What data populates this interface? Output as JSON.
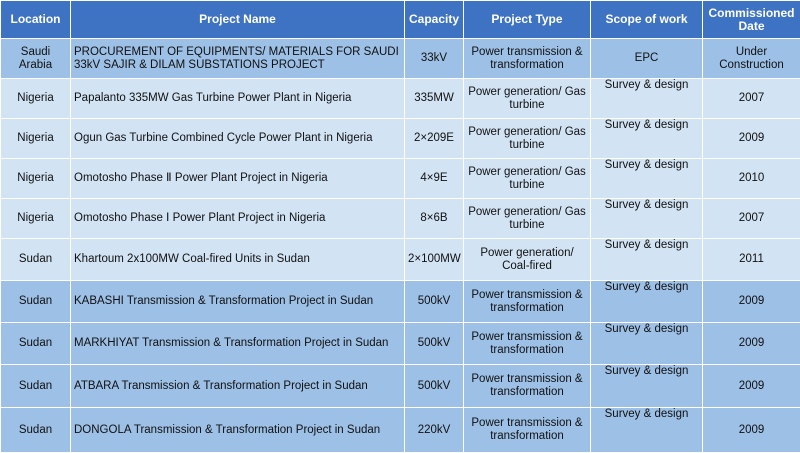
{
  "table": {
    "headers": {
      "location": "Location",
      "project_name": "Project Name",
      "capacity": "Capacity",
      "project_type": "Project Type",
      "scope": "Scope of work",
      "commissioned": "Commissioned Date"
    },
    "rows": [
      {
        "location": "Saudi Arabia",
        "project_name": "PROCUREMENT OF EQUIPMENTS/ MATERIALS FOR SAUDI 33kV SAJIR & DILAM SUBSTATIONS PROJECT",
        "capacity": "33kV",
        "project_type": "Power transmission & transformation",
        "scope": "EPC",
        "commissioned": "Under Construction"
      },
      {
        "location": "Nigeria",
        "project_name": "Papalanto 335MW Gas Turbine Power Plant in Nigeria",
        "capacity": "335MW",
        "project_type": "Power generation/ Gas turbine",
        "scope": "Survey & design",
        "commissioned": "2007"
      },
      {
        "location": "Nigeria",
        "project_name": "Ogun Gas Turbine Combined Cycle Power Plant in Nigeria",
        "capacity": "2×209E",
        "project_type": "Power generation/ Gas turbine",
        "scope": "Survey & design",
        "commissioned": "2009"
      },
      {
        "location": "Nigeria",
        "project_name": "Omotosho Phase Ⅱ Power Plant Project in Nigeria",
        "capacity": "4×9E",
        "project_type": "Power generation/ Gas turbine",
        "scope": "Survey & design",
        "commissioned": "2010"
      },
      {
        "location": "Nigeria",
        "project_name": "Omotosho Phase Ⅰ Power Plant Project in Nigeria",
        "capacity": "8×6B",
        "project_type": "Power generation/ Gas turbine",
        "scope": "Survey & design",
        "commissioned": "2007"
      },
      {
        "location": "Sudan",
        "project_name": "Khartoum 2x100MW Coal-fired Units in Sudan",
        "capacity": "2×100MW",
        "project_type": "Power generation/ Coal-fired",
        "scope": "Survey & design",
        "commissioned": "2011"
      },
      {
        "location": "Sudan",
        "project_name": "KABASHI Transmission & Transformation Project in Sudan",
        "capacity": "500kV",
        "project_type": "Power transmission & transformation",
        "scope": "Survey & design",
        "commissioned": "2009"
      },
      {
        "location": "Sudan",
        "project_name": "MARKHIYAT Transmission & Transformation Project in Sudan",
        "capacity": "500kV",
        "project_type": "Power transmission & transformation",
        "scope": "Survey & design",
        "commissioned": "2009"
      },
      {
        "location": "Sudan",
        "project_name": "ATBARA Transmission & Transformation Project in Sudan",
        "capacity": "500kV",
        "project_type": "Power transmission & transformation",
        "scope": "Survey & design",
        "commissioned": "2009"
      },
      {
        "location": "Sudan",
        "project_name": "DONGOLA Transmission & Transformation Project in Sudan",
        "capacity": "220kV",
        "project_type": "Power transmission & transformation",
        "scope": "Survey & design",
        "commissioned": "2009"
      }
    ]
  }
}
